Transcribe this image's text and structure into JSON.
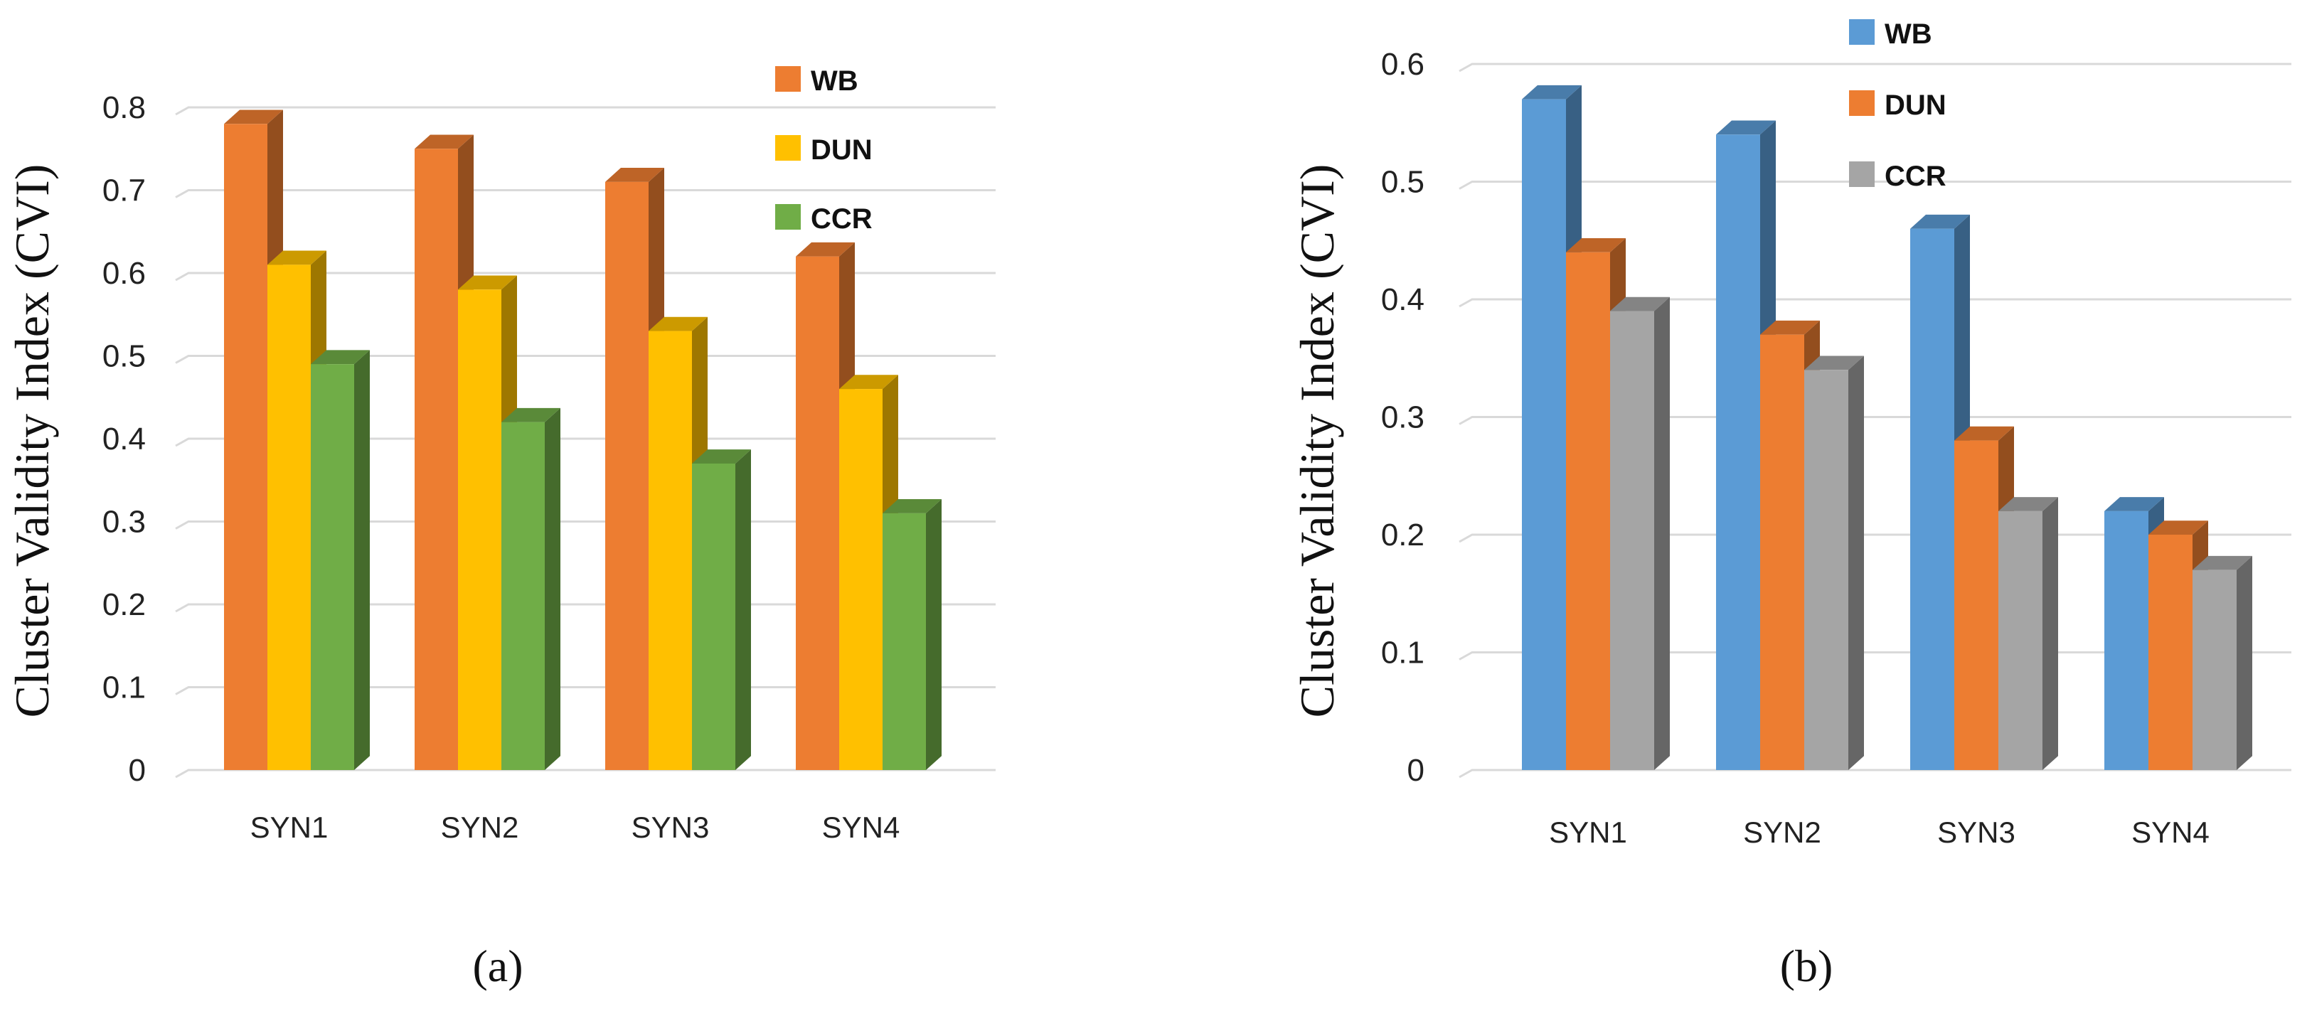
{
  "chart_data": [
    {
      "type": "bar",
      "title": "",
      "panel_label": "(a)",
      "xlabel": "",
      "ylabel": "Cluster Validity Index (CVI)",
      "ylim": [
        0,
        0.8
      ],
      "yticks": [
        "0",
        "0.1",
        "0.2",
        "0.3",
        "0.4",
        "0.5",
        "0.6",
        "0.7",
        "0.8"
      ],
      "grid": true,
      "legend_position": "top-right",
      "categories": [
        "SYN1",
        "SYN2",
        "SYN3",
        "SYN4"
      ],
      "series": [
        {
          "name": "WB",
          "color": "#ED7D31",
          "values": [
            0.78,
            0.75,
            0.71,
            0.62
          ]
        },
        {
          "name": "DUN",
          "color": "#FFC000",
          "values": [
            0.61,
            0.58,
            0.53,
            0.46
          ]
        },
        {
          "name": "CCR",
          "color": "#70AD47",
          "values": [
            0.49,
            0.42,
            0.37,
            0.31
          ]
        }
      ]
    },
    {
      "type": "bar",
      "title": "",
      "panel_label": "(b)",
      "xlabel": "",
      "ylabel": "Cluster Validity Index (CVI)",
      "ylim": [
        0,
        0.6
      ],
      "yticks": [
        "0",
        "0.1",
        "0.2",
        "0.3",
        "0.4",
        "0.5",
        "0.6"
      ],
      "grid": true,
      "legend_position": "top-right",
      "categories": [
        "SYN1",
        "SYN2",
        "SYN3",
        "SYN4"
      ],
      "series": [
        {
          "name": "WB",
          "color": "#5B9BD5",
          "values": [
            0.57,
            0.54,
            0.46,
            0.22
          ]
        },
        {
          "name": "DUN",
          "color": "#ED7D31",
          "values": [
            0.44,
            0.37,
            0.28,
            0.2
          ]
        },
        {
          "name": "CCR",
          "color": "#A5A5A5",
          "values": [
            0.39,
            0.34,
            0.22,
            0.17
          ]
        }
      ]
    }
  ]
}
